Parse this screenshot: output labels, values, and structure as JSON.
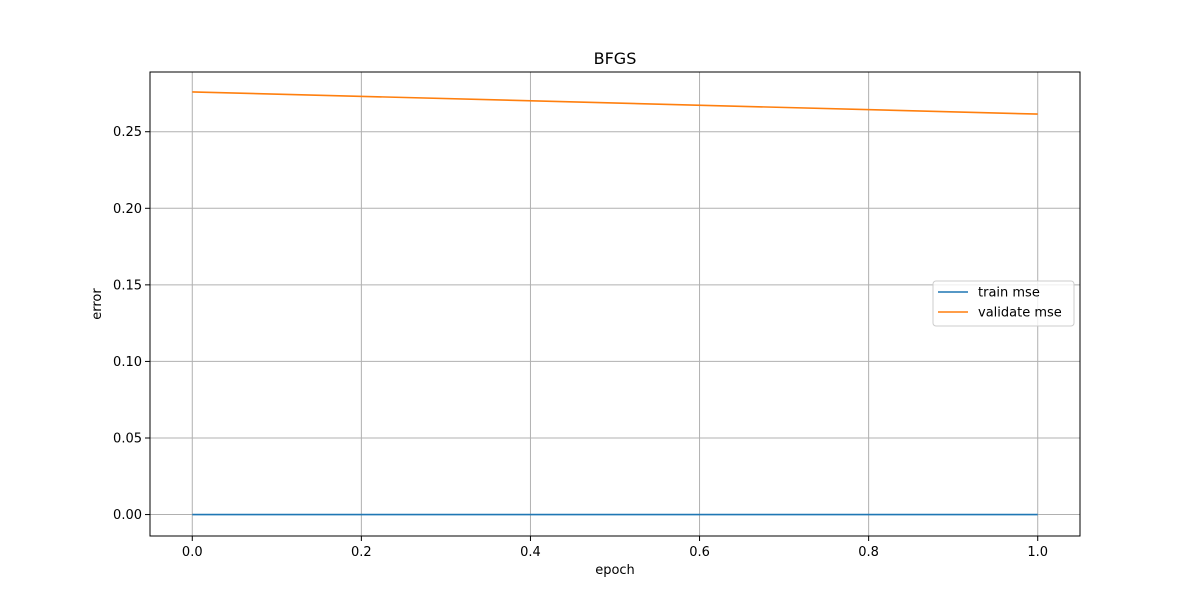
{
  "chart_data": {
    "type": "line",
    "title": "BFGS",
    "xlabel": "epoch",
    "ylabel": "error",
    "xlim": [
      -0.05,
      1.05
    ],
    "ylim": [
      -0.014,
      0.289
    ],
    "xticks": [
      0.0,
      0.2,
      0.4,
      0.6,
      0.8,
      1.0
    ],
    "xtick_labels": [
      "0.0",
      "0.2",
      "0.4",
      "0.6",
      "0.8",
      "1.0"
    ],
    "yticks": [
      0.0,
      0.05,
      0.1,
      0.15,
      0.2,
      0.25
    ],
    "ytick_labels": [
      "0.00",
      "0.05",
      "0.10",
      "0.15",
      "0.20",
      "0.25"
    ],
    "grid": true,
    "legend_position": "center-right",
    "series": [
      {
        "name": "train mse",
        "color": "#1f77b4",
        "x": [
          0.0,
          1.0
        ],
        "values": [
          0.0,
          0.0
        ]
      },
      {
        "name": "validate mse",
        "color": "#ff7f0e",
        "x": [
          0.0,
          1.0
        ],
        "values": [
          0.276,
          0.2615
        ]
      }
    ]
  }
}
